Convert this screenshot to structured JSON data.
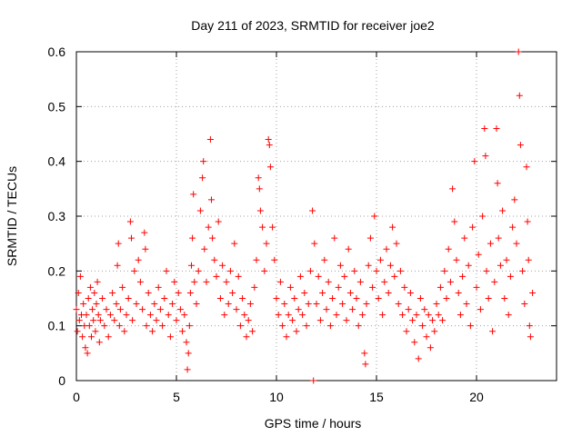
{
  "chart_data": {
    "type": "scatter",
    "title": "Day 211 of 2023, SRMTID for receiver joe2",
    "xlabel": "GPS time / hours",
    "ylabel": "SRMTID / TECUs",
    "xlim": [
      0,
      24
    ],
    "ylim": [
      0,
      0.6
    ],
    "xticks": [
      0,
      5,
      10,
      15,
      20
    ],
    "yticks": [
      0,
      0.1,
      0.2,
      0.3,
      0.4,
      0.5,
      0.6
    ],
    "xtick_labels": [
      "0",
      "5",
      "10",
      "15",
      "20"
    ],
    "ytick_labels": [
      "0",
      "0.1",
      "0.2",
      "0.3",
      "0.4",
      "0.5",
      "0.6"
    ],
    "grid": true,
    "marker": "+",
    "series": [
      {
        "name": "SRMTID",
        "color": "#ff0000",
        "points": [
          [
            0.0,
            0.13
          ],
          [
            0.05,
            0.09
          ],
          [
            0.1,
            0.16
          ],
          [
            0.15,
            0.11
          ],
          [
            0.2,
            0.19
          ],
          [
            0.25,
            0.12
          ],
          [
            0.3,
            0.08
          ],
          [
            0.35,
            0.14
          ],
          [
            0.4,
            0.1
          ],
          [
            0.45,
            0.06
          ],
          [
            0.5,
            0.12
          ],
          [
            0.55,
            0.05
          ],
          [
            0.6,
            0.15
          ],
          [
            0.65,
            0.1
          ],
          [
            0.7,
            0.17
          ],
          [
            0.75,
            0.08
          ],
          [
            0.8,
            0.13
          ],
          [
            0.85,
            0.11
          ],
          [
            0.9,
            0.16
          ],
          [
            0.95,
            0.09
          ],
          [
            1.0,
            0.14
          ],
          [
            1.05,
            0.18
          ],
          [
            1.1,
            0.12
          ],
          [
            1.15,
            0.07
          ],
          [
            1.2,
            0.11
          ],
          [
            1.3,
            0.15
          ],
          [
            1.4,
            0.1
          ],
          [
            1.5,
            0.13
          ],
          [
            1.6,
            0.08
          ],
          [
            1.7,
            0.12
          ],
          [
            1.8,
            0.16
          ],
          [
            1.9,
            0.11
          ],
          [
            2.0,
            0.14
          ],
          [
            2.05,
            0.21
          ],
          [
            2.1,
            0.25
          ],
          [
            2.15,
            0.1
          ],
          [
            2.2,
            0.13
          ],
          [
            2.3,
            0.17
          ],
          [
            2.4,
            0.09
          ],
          [
            2.5,
            0.12
          ],
          [
            2.6,
            0.15
          ],
          [
            2.7,
            0.29
          ],
          [
            2.75,
            0.26
          ],
          [
            2.8,
            0.11
          ],
          [
            2.9,
            0.2
          ],
          [
            3.0,
            0.14
          ],
          [
            3.1,
            0.22
          ],
          [
            3.2,
            0.18
          ],
          [
            3.3,
            0.13
          ],
          [
            3.4,
            0.27
          ],
          [
            3.45,
            0.24
          ],
          [
            3.5,
            0.1
          ],
          [
            3.6,
            0.16
          ],
          [
            3.7,
            0.12
          ],
          [
            3.8,
            0.09
          ],
          [
            3.9,
            0.14
          ],
          [
            4.0,
            0.11
          ],
          [
            4.1,
            0.17
          ],
          [
            4.2,
            0.13
          ],
          [
            4.3,
            0.1
          ],
          [
            4.4,
            0.15
          ],
          [
            4.5,
            0.2
          ],
          [
            4.6,
            0.12
          ],
          [
            4.7,
            0.08
          ],
          [
            4.8,
            0.14
          ],
          [
            4.9,
            0.18
          ],
          [
            5.0,
            0.11
          ],
          [
            5.1,
            0.16
          ],
          [
            5.2,
            0.13
          ],
          [
            5.3,
            0.09
          ],
          [
            5.4,
            0.12
          ],
          [
            5.5,
            0.07
          ],
          [
            5.55,
            0.02
          ],
          [
            5.6,
            0.05
          ],
          [
            5.65,
            0.1
          ],
          [
            5.7,
            0.16
          ],
          [
            5.75,
            0.21
          ],
          [
            5.8,
            0.26
          ],
          [
            5.85,
            0.34
          ],
          [
            5.9,
            0.18
          ],
          [
            6.0,
            0.14
          ],
          [
            6.1,
            0.2
          ],
          [
            6.2,
            0.31
          ],
          [
            6.3,
            0.37
          ],
          [
            6.35,
            0.4
          ],
          [
            6.4,
            0.24
          ],
          [
            6.5,
            0.18
          ],
          [
            6.6,
            0.28
          ],
          [
            6.7,
            0.44
          ],
          [
            6.75,
            0.33
          ],
          [
            6.8,
            0.26
          ],
          [
            6.9,
            0.22
          ],
          [
            7.0,
            0.19
          ],
          [
            7.1,
            0.29
          ],
          [
            7.2,
            0.15
          ],
          [
            7.3,
            0.21
          ],
          [
            7.4,
            0.12
          ],
          [
            7.5,
            0.18
          ],
          [
            7.6,
            0.14
          ],
          [
            7.7,
            0.2
          ],
          [
            7.8,
            0.16
          ],
          [
            7.9,
            0.25
          ],
          [
            8.0,
            0.13
          ],
          [
            8.1,
            0.19
          ],
          [
            8.2,
            0.1
          ],
          [
            8.3,
            0.15
          ],
          [
            8.4,
            0.12
          ],
          [
            8.5,
            0.08
          ],
          [
            8.6,
            0.11
          ],
          [
            8.7,
            0.14
          ],
          [
            8.8,
            0.09
          ],
          [
            8.9,
            0.17
          ],
          [
            9.0,
            0.22
          ],
          [
            9.1,
            0.37
          ],
          [
            9.15,
            0.35
          ],
          [
            9.2,
            0.31
          ],
          [
            9.3,
            0.28
          ],
          [
            9.4,
            0.2
          ],
          [
            9.5,
            0.25
          ],
          [
            9.6,
            0.44
          ],
          [
            9.65,
            0.43
          ],
          [
            9.7,
            0.39
          ],
          [
            9.8,
            0.28
          ],
          [
            9.9,
            0.22
          ],
          [
            10.0,
            0.15
          ],
          [
            10.1,
            0.12
          ],
          [
            10.2,
            0.18
          ],
          [
            10.3,
            0.1
          ],
          [
            10.4,
            0.14
          ],
          [
            10.5,
            0.08
          ],
          [
            10.6,
            0.12
          ],
          [
            10.7,
            0.17
          ],
          [
            10.8,
            0.11
          ],
          [
            10.9,
            0.15
          ],
          [
            11.0,
            0.09
          ],
          [
            11.1,
            0.13
          ],
          [
            11.2,
            0.19
          ],
          [
            11.3,
            0.12
          ],
          [
            11.4,
            0.16
          ],
          [
            11.5,
            0.1
          ],
          [
            11.6,
            0.14
          ],
          [
            11.7,
            0.2
          ],
          [
            11.8,
            0.31
          ],
          [
            11.85,
            0.0
          ],
          [
            11.9,
            0.25
          ],
          [
            12.0,
            0.14
          ],
          [
            12.1,
            0.19
          ],
          [
            12.2,
            0.11
          ],
          [
            12.3,
            0.16
          ],
          [
            12.4,
            0.22
          ],
          [
            12.5,
            0.13
          ],
          [
            12.6,
            0.18
          ],
          [
            12.7,
            0.1
          ],
          [
            12.8,
            0.15
          ],
          [
            12.9,
            0.26
          ],
          [
            13.0,
            0.12
          ],
          [
            13.1,
            0.17
          ],
          [
            13.2,
            0.21
          ],
          [
            13.3,
            0.14
          ],
          [
            13.4,
            0.19
          ],
          [
            13.5,
            0.11
          ],
          [
            13.6,
            0.24
          ],
          [
            13.7,
            0.16
          ],
          [
            13.8,
            0.13
          ],
          [
            13.9,
            0.2
          ],
          [
            14.0,
            0.15
          ],
          [
            14.1,
            0.1
          ],
          [
            14.2,
            0.18
          ],
          [
            14.3,
            0.12
          ],
          [
            14.4,
            0.05
          ],
          [
            14.45,
            0.03
          ],
          [
            14.5,
            0.14
          ],
          [
            14.6,
            0.21
          ],
          [
            14.7,
            0.26
          ],
          [
            14.8,
            0.17
          ],
          [
            14.9,
            0.3
          ],
          [
            15.0,
            0.2
          ],
          [
            15.1,
            0.15
          ],
          [
            15.2,
            0.22
          ],
          [
            15.3,
            0.12
          ],
          [
            15.4,
            0.18
          ],
          [
            15.5,
            0.24
          ],
          [
            15.6,
            0.16
          ],
          [
            15.7,
            0.21
          ],
          [
            15.8,
            0.28
          ],
          [
            15.9,
            0.19
          ],
          [
            16.0,
            0.25
          ],
          [
            16.1,
            0.14
          ],
          [
            16.2,
            0.2
          ],
          [
            16.3,
            0.12
          ],
          [
            16.4,
            0.17
          ],
          [
            16.5,
            0.09
          ],
          [
            16.6,
            0.13
          ],
          [
            16.7,
            0.16
          ],
          [
            16.8,
            0.11
          ],
          [
            16.9,
            0.07
          ],
          [
            17.0,
            0.12
          ],
          [
            17.1,
            0.04
          ],
          [
            17.2,
            0.15
          ],
          [
            17.3,
            0.1
          ],
          [
            17.4,
            0.13
          ],
          [
            17.5,
            0.08
          ],
          [
            17.6,
            0.12
          ],
          [
            17.7,
            0.06
          ],
          [
            17.8,
            0.11
          ],
          [
            17.9,
            0.09
          ],
          [
            18.0,
            0.14
          ],
          [
            18.1,
            0.12
          ],
          [
            18.2,
            0.17
          ],
          [
            18.3,
            0.11
          ],
          [
            18.4,
            0.2
          ],
          [
            18.5,
            0.15
          ],
          [
            18.6,
            0.24
          ],
          [
            18.7,
            0.18
          ],
          [
            18.8,
            0.35
          ],
          [
            18.9,
            0.29
          ],
          [
            19.0,
            0.22
          ],
          [
            19.1,
            0.16
          ],
          [
            19.2,
            0.12
          ],
          [
            19.3,
            0.19
          ],
          [
            19.4,
            0.26
          ],
          [
            19.5,
            0.14
          ],
          [
            19.6,
            0.21
          ],
          [
            19.7,
            0.1
          ],
          [
            19.8,
            0.28
          ],
          [
            19.9,
            0.4
          ],
          [
            20.0,
            0.17
          ],
          [
            20.1,
            0.23
          ],
          [
            20.2,
            0.13
          ],
          [
            20.3,
            0.3
          ],
          [
            20.4,
            0.46
          ],
          [
            20.45,
            0.41
          ],
          [
            20.5,
            0.2
          ],
          [
            20.6,
            0.15
          ],
          [
            20.7,
            0.25
          ],
          [
            20.8,
            0.09
          ],
          [
            20.9,
            0.18
          ],
          [
            21.0,
            0.46
          ],
          [
            21.05,
            0.36
          ],
          [
            21.1,
            0.26
          ],
          [
            21.2,
            0.21
          ],
          [
            21.3,
            0.31
          ],
          [
            21.4,
            0.15
          ],
          [
            21.5,
            0.22
          ],
          [
            21.6,
            0.12
          ],
          [
            21.7,
            0.19
          ],
          [
            21.8,
            0.28
          ],
          [
            21.9,
            0.33
          ],
          [
            22.0,
            0.25
          ],
          [
            22.1,
            0.6
          ],
          [
            22.15,
            0.52
          ],
          [
            22.2,
            0.43
          ],
          [
            22.3,
            0.2
          ],
          [
            22.4,
            0.14
          ],
          [
            22.5,
            0.39
          ],
          [
            22.55,
            0.29
          ],
          [
            22.6,
            0.22
          ],
          [
            22.65,
            0.1
          ],
          [
            22.7,
            0.08
          ],
          [
            22.8,
            0.16
          ]
        ]
      }
    ]
  }
}
